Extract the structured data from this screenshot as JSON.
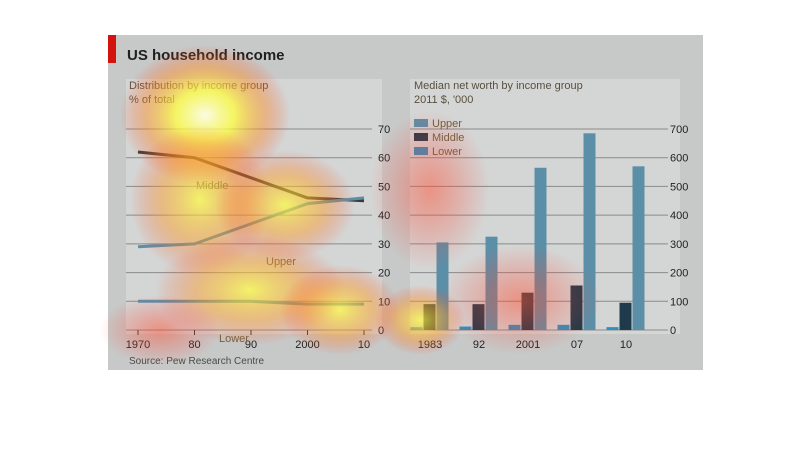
{
  "figure_title": "US household income",
  "source": "Source: Pew Research Centre",
  "colors": {
    "background": "#c7c9c8",
    "accent_red": "#d4120e",
    "upper": "#5b8fa8",
    "middle": "#1f3a4a",
    "lower": "#2e8fc0",
    "grid": "#8a8a8a"
  },
  "chart_data": [
    {
      "type": "line",
      "title": "Distribution by income group",
      "subtitle": "% of total",
      "x": [
        1970,
        1980,
        1990,
        2000,
        2010
      ],
      "x_tick_labels": [
        "1970",
        "80",
        "90",
        "2000",
        "10"
      ],
      "y_ticks": [
        0,
        10,
        20,
        30,
        40,
        50,
        60,
        70
      ],
      "ylim": [
        0,
        70
      ],
      "y_axis_side": "right",
      "grid": true,
      "series": [
        {
          "name": "Middle",
          "values": [
            62,
            60,
            53,
            46,
            45
          ]
        },
        {
          "name": "Upper",
          "values": [
            29,
            30,
            37,
            44,
            46
          ]
        },
        {
          "name": "Lower",
          "values": [
            10,
            10,
            10,
            9,
            9
          ]
        }
      ]
    },
    {
      "type": "bar",
      "title": "Median net worth by income group",
      "subtitle": "2011 $, '000",
      "categories": [
        "1983",
        "92",
        "2001",
        "07",
        "10"
      ],
      "y_ticks": [
        0,
        100,
        200,
        300,
        400,
        500,
        600,
        700
      ],
      "ylim": [
        0,
        700
      ],
      "y_axis_side": "right",
      "grid": true,
      "legend": "top-left",
      "series": [
        {
          "name": "Upper",
          "values": [
            305,
            325,
            565,
            685,
            570
          ]
        },
        {
          "name": "Middle",
          "values": [
            90,
            90,
            130,
            155,
            95
          ]
        },
        {
          "name": "Lower",
          "values": [
            10,
            12,
            18,
            18,
            10
          ]
        }
      ]
    }
  ]
}
